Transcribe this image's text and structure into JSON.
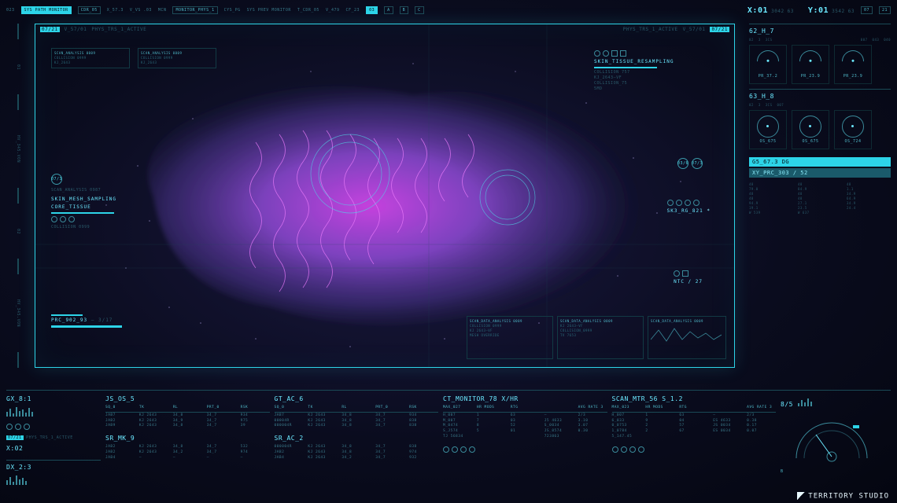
{
  "colors": {
    "bg_deep": "#040610",
    "bg_mid": "#0a0c1e",
    "bg_glow": "#1a1840",
    "cyan": "#2dd4e8",
    "cyan_bright": "#88f0ff",
    "cyan_dim": "#2a5a6a",
    "cyan_mid": "#4fd8e8",
    "purple": "#a855f7",
    "magenta": "#d946ef",
    "particle": "#c084fc"
  },
  "topbar": {
    "segs": [
      "023",
      "SYS PATH MONITOR",
      "CDR_05",
      "X_57.3",
      "V_VS .03",
      "MCN",
      "MONITOR_PHYS_1",
      "CYS_PG",
      "SYS PREV MONITOR",
      "T_CDR_05",
      "V_479",
      "CF_23"
    ],
    "chips": [
      "03",
      "A",
      "B",
      "C",
      "07",
      "21"
    ],
    "coord": {
      "x_lbl": "X:01",
      "x_val": "3042 63",
      "y_lbl": "Y:01",
      "y_val": "3542 63"
    }
  },
  "viewport": {
    "top_left": {
      "seg": [
        "V_57/01",
        "PHYS_TRS_1_ACTIVE"
      ],
      "hl": "07/21"
    },
    "top_right": {
      "seg": [
        "PHYS_TRS_1_ACTIVE",
        "V_57/01"
      ],
      "hl": "07/21"
    },
    "callout_tr": {
      "title": "SKIN_TISSUE_RESAMPLING",
      "lines": [
        "COLLISION 757",
        "KJ_2643—VF",
        "COLLISION_75",
        "5MD"
      ]
    },
    "callout_ml": {
      "title": "SKIN_MESH_SAMPLING",
      "sub": "CORE_TISSUE",
      "tag": "07/3",
      "lines": [
        "SCAN_ANALYSIS 0987",
        "COLLISION 0999"
      ]
    },
    "callout_bl": {
      "title": "PRC_902_93",
      "val": "— 3/17"
    },
    "label_tr": {
      "title": "SK3_RG_821",
      "marker": "*"
    },
    "label_br": {
      "title": "NTC / 27"
    },
    "rings": {
      "a": "03/6",
      "b": "07/3"
    },
    "datapanels": {
      "p1": {
        "hdr": "SCAN_DATA_ANALYSIS 0009",
        "rows": [
          "COLLISION 0999",
          "KJ 2643—VF",
          "MESH OVERRIDE"
        ]
      },
      "p2": {
        "hdr": "SCAN_DATA_ANALYSIS 0009",
        "rows": [
          "KJ 2643—VF",
          "COLLISION_0999",
          "TV 7653"
        ]
      },
      "p3": {
        "hdr": "SCAN_DATA_ANALYSIS 0009",
        "rows": [
          "KJ 2643—VF",
          "TV 7653"
        ]
      }
    }
  },
  "right": {
    "p1": {
      "h": "62_H_7",
      "gauges": [
        "PR_37.2",
        "PR_23.9",
        "PR_23.9"
      ],
      "meta": [
        "02",
        "3",
        "3CS",
        "007",
        "043",
        "040"
      ]
    },
    "p2": {
      "h": "63_H_8",
      "gauges": [
        "OS_675",
        "OS_675",
        "OS_724"
      ],
      "meta": [
        "02",
        "3",
        "3CS",
        "007"
      ]
    },
    "tags": {
      "prime": "G5_67.3 DG",
      "sec": "XY_PRC_303 / 52"
    },
    "grid": [
      "48",
      "79.0",
      "48",
      "48",
      "94.9",
      "19.1",
      "W 539",
      "48",
      "84.9",
      "48",
      "48",
      "27.1",
      "23.5",
      "W 637",
      "48",
      "1.1",
      "34.9",
      "64.9",
      "34.9",
      "24.4"
    ]
  },
  "bottom": {
    "gx": {
      "h": "GX_8:1",
      "sub": "X:02",
      "seg": "PHYS_TRS_1_ACTIVE"
    },
    "dx": {
      "h": "DX_2:3"
    },
    "cols": [
      {
        "h": "JS_OS_5",
        "h2": "SR_MK_9",
        "hdr": [
          "SQ_0",
          "TK",
          "RL",
          "PRT_0",
          "RSK"
        ],
        "rows": [
          [
            "JAB7",
            "KJ 2643",
            "34_8",
            "34_7",
            "934"
          ],
          [
            "JAB2",
            "KJ 2643",
            "34_9",
            "34_7",
            "975"
          ],
          [
            "JAB9",
            "KJ 2643",
            "34_8",
            "34_7",
            "39"
          ],
          [
            "JAB2",
            "KJ 2643",
            "34_8",
            "34_7",
            "532"
          ],
          [
            "JAB2",
            "KJ 2643",
            "34_2",
            "34_7",
            "974"
          ],
          [
            "JAB4",
            "—",
            "—",
            "—",
            "—"
          ]
        ]
      },
      {
        "h": "GT_AC_6",
        "h2": "SR_AC_2",
        "hdr": [
          "SQ_0",
          "TK",
          "RL",
          "PRT_0",
          "RSK"
        ],
        "rows": [
          [
            "JAB7",
            "KJ 2643",
            "34_8",
            "34_7",
            "934"
          ],
          [
            "00004R",
            "KJ 2643",
            "34_8",
            "34_7",
            "838"
          ],
          [
            "000004R",
            "KJ 2643",
            "34_8",
            "34_7",
            "838"
          ],
          [
            "000004R",
            "KJ 2643",
            "34_8",
            "34_7",
            "838"
          ],
          [
            "JAB2",
            "KJ 2643",
            "34_8",
            "34_7",
            "974"
          ],
          [
            "JAB4",
            "KJ 2643",
            "34_2",
            "34_7",
            "932"
          ]
        ]
      },
      {
        "h": "CT_MONITOR_78 X/HR",
        "hdr": [
          "MAX_027",
          "HR MODS",
          "RTG",
          "AVG RATE 3"
        ],
        "rows": [
          [
            "H_007",
            "1",
            "63",
            "—",
            "2/3"
          ],
          [
            "M_007",
            "7",
            "03",
            "J5 4633",
            "3.10"
          ],
          [
            "M_0474",
            "8",
            "52",
            "S_0034",
            "3.07"
          ],
          [
            "S_J574",
            "5",
            "01",
            "JS_0574",
            "0.30"
          ],
          [
            "TJ 56834",
            "",
            "",
            "723863",
            ""
          ]
        ]
      },
      {
        "h": "SCAN_MTR_56 S_1.2",
        "hdr": [
          "MAX_023",
          "HR MODS",
          "RTG",
          "AVG RATE 3"
        ],
        "rows": [
          [
            "H_007",
            "1",
            "63",
            "—",
            "2/3"
          ],
          [
            "6_033",
            "9",
            "04",
            "ES 4633",
            "0.38"
          ],
          [
            "0_0753",
            "2",
            "57",
            "JS 0034",
            "0.17"
          ],
          [
            "1_0784",
            "2",
            "67",
            "ES 0034",
            "0.07"
          ],
          [
            "5_147.45",
            "",
            "",
            "",
            ""
          ]
        ]
      }
    ],
    "dial": {
      "h": "8/5",
      "sub": "3",
      "b": "B"
    }
  },
  "footer": "TERRITORY STUDIO"
}
